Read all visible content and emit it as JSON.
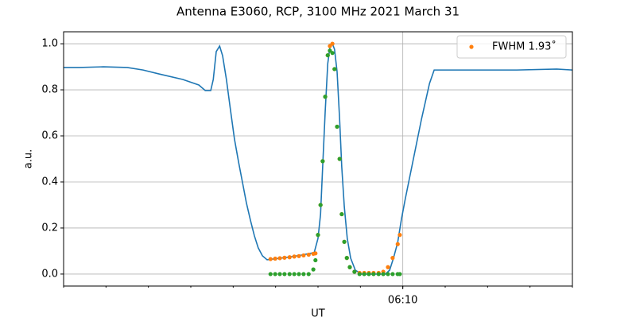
{
  "chart_data": {
    "type": "line",
    "title": "Antenna E3060, RCP, 3100 MHz 2021 March 31",
    "xlabel": "UT",
    "ylabel": "a.u.",
    "xlim": [
      362,
      374
    ],
    "xticks": [
      {
        "value": 370,
        "label": "06:10"
      }
    ],
    "xminorticks": [
      362,
      363,
      364,
      365,
      366,
      367,
      368,
      369,
      370,
      371,
      372,
      373,
      374
    ],
    "ylim": [
      -0.052,
      1.052
    ],
    "yticks": [
      {
        "value": 0,
        "label": "0.0"
      },
      0.2,
      0.4,
      0.6,
      0.8,
      {
        "value": 1,
        "label": "1.0"
      }
    ],
    "grid": true,
    "legend": "upper right",
    "series": [
      {
        "type": "line",
        "color": "#1f77b4",
        "x": [
          362.0,
          362.375,
          362.94,
          363.5,
          363.875,
          364.25,
          364.81,
          365.19,
          365.34,
          365.47,
          365.53,
          365.6,
          365.68,
          365.75,
          365.84,
          365.94,
          366.03,
          366.13,
          366.22,
          366.31,
          366.41,
          366.5,
          366.59,
          366.69,
          366.8,
          366.97,
          367.25,
          367.63,
          367.91,
          368.0,
          368.06,
          368.11,
          368.17,
          368.23,
          368.28,
          368.34,
          368.39,
          368.45,
          368.51,
          368.56,
          368.62,
          368.69,
          368.77,
          368.88,
          369.03,
          369.59,
          369.69,
          369.78,
          369.88,
          369.97,
          370.06,
          370.25,
          370.44,
          370.63,
          370.74,
          371.0,
          371.75,
          372.69,
          373.63,
          374.0
        ],
        "values": [
          0.897,
          0.897,
          0.9,
          0.897,
          0.886,
          0.869,
          0.845,
          0.821,
          0.797,
          0.797,
          0.845,
          0.966,
          0.99,
          0.948,
          0.845,
          0.707,
          0.586,
          0.483,
          0.397,
          0.31,
          0.231,
          0.166,
          0.114,
          0.079,
          0.062,
          0.066,
          0.072,
          0.083,
          0.093,
          0.155,
          0.259,
          0.466,
          0.707,
          0.914,
          0.983,
          1.0,
          0.976,
          0.879,
          0.672,
          0.466,
          0.293,
          0.155,
          0.069,
          0.017,
          0.0,
          0.0,
          0.017,
          0.069,
          0.138,
          0.241,
          0.328,
          0.5,
          0.672,
          0.828,
          0.886,
          0.886,
          0.886,
          0.886,
          0.89,
          0.886
        ]
      },
      {
        "type": "scatter",
        "name": "FWHM 1.93˚",
        "color": "#ff7f0e",
        "x": [
          366.88,
          366.99,
          367.1,
          367.21,
          367.33,
          367.44,
          367.55,
          367.66,
          367.78,
          367.89,
          367.94,
          368.0,
          368.06,
          368.11,
          368.17,
          368.23,
          368.28,
          368.34,
          368.39,
          368.45,
          368.51,
          368.56,
          368.62,
          368.68,
          368.75,
          368.86,
          368.98,
          369.09,
          369.2,
          369.31,
          369.43,
          369.54,
          369.65,
          369.76,
          369.88,
          369.93
        ],
        "values": [
          0.065,
          0.067,
          0.069,
          0.071,
          0.073,
          0.076,
          0.078,
          0.081,
          0.084,
          0.088,
          0.09,
          0.17,
          0.3,
          0.49,
          0.77,
          0.95,
          0.99,
          1.0,
          0.89,
          0.64,
          0.5,
          0.26,
          0.14,
          0.07,
          0.03,
          0.01,
          0.005,
          0.005,
          0.005,
          0.005,
          0.005,
          0.01,
          0.03,
          0.07,
          0.13,
          0.17
        ]
      },
      {
        "type": "scatter",
        "color": "#2ca02c",
        "x": [
          366.88,
          366.99,
          367.1,
          367.21,
          367.33,
          367.44,
          367.55,
          367.66,
          367.78,
          367.89,
          367.94,
          368.0,
          368.06,
          368.11,
          368.17,
          368.23,
          368.28,
          368.34,
          368.39,
          368.45,
          368.51,
          368.56,
          368.62,
          368.68,
          368.75,
          368.86,
          368.98,
          369.09,
          369.2,
          369.31,
          369.43,
          369.54,
          369.65,
          369.76,
          369.88,
          369.93
        ],
        "values": [
          0.0,
          0.0,
          0.0,
          0.0,
          0.0,
          0.0,
          0.0,
          0.0,
          0.0,
          0.02,
          0.06,
          0.17,
          0.3,
          0.49,
          0.77,
          0.95,
          0.97,
          0.96,
          0.89,
          0.64,
          0.5,
          0.26,
          0.14,
          0.07,
          0.03,
          0.01,
          0.0,
          0.0,
          0.0,
          0.0,
          0.0,
          0.0,
          0.0,
          0.0,
          0.0,
          0.0
        ]
      }
    ]
  }
}
